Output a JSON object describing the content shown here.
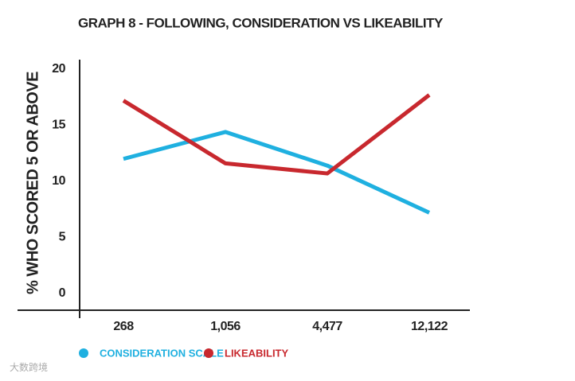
{
  "chart_data": {
    "type": "line",
    "title": "GRAPH 8 - FOLLOWING, CONSIDERATION VS LIKEABILITY",
    "y_label": "% WHO SCORED 5 OR ABOVE",
    "categories": [
      "268",
      "1,056",
      "4,477",
      "12,122"
    ],
    "series": [
      {
        "name": "CONSIDERATION SCALE",
        "color": "#1fb0e0",
        "values": [
          12,
          14.4,
          11.4,
          7.2
        ]
      },
      {
        "name": "LIKEABILITY",
        "color": "#c8282e",
        "values": [
          17.2,
          11.6,
          10.7,
          17.7
        ]
      }
    ],
    "ylim": [
      -1.5,
      20
    ],
    "yticks": [
      0,
      5,
      10,
      15,
      20
    ]
  },
  "watermark": "大数跨境"
}
